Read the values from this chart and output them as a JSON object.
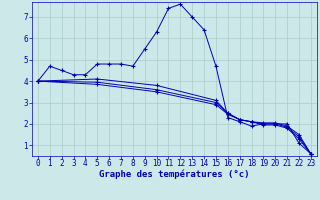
{
  "xlabel": "Graphe des températures (°c)",
  "background_color": "#cce8e8",
  "grid_color": "#aacccc",
  "line_color": "#0000bb",
  "xlim": [
    -0.5,
    23.5
  ],
  "ylim": [
    0.5,
    7.7
  ],
  "xticks": [
    0,
    1,
    2,
    3,
    4,
    5,
    6,
    7,
    8,
    9,
    10,
    11,
    12,
    13,
    14,
    15,
    16,
    17,
    18,
    19,
    20,
    21,
    22,
    23
  ],
  "yticks": [
    1,
    2,
    3,
    4,
    5,
    6,
    7
  ],
  "series": [
    {
      "x": [
        0,
        1,
        2,
        3,
        4,
        5,
        6,
        7,
        8,
        9,
        10,
        11,
        12,
        13,
        14,
        15,
        16,
        17,
        18,
        19,
        20,
        21,
        22,
        23
      ],
      "y": [
        4.0,
        4.7,
        4.5,
        4.3,
        4.3,
        4.8,
        4.8,
        4.8,
        4.7,
        5.5,
        6.3,
        7.4,
        7.6,
        7.0,
        6.4,
        4.7,
        2.3,
        2.1,
        1.9,
        2.0,
        2.0,
        2.0,
        1.1,
        0.6
      ]
    },
    {
      "x": [
        0,
        5,
        10,
        15,
        16,
        17,
        18,
        19,
        20,
        21,
        22,
        23
      ],
      "y": [
        4.0,
        4.1,
        3.8,
        3.1,
        2.5,
        2.2,
        2.1,
        2.05,
        2.05,
        1.9,
        1.5,
        0.6
      ]
    },
    {
      "x": [
        0,
        5,
        10,
        15,
        16,
        17,
        18,
        19,
        20,
        21,
        22,
        23
      ],
      "y": [
        4.0,
        3.95,
        3.6,
        3.0,
        2.5,
        2.2,
        2.1,
        2.0,
        2.0,
        1.85,
        1.4,
        0.6
      ]
    },
    {
      "x": [
        0,
        5,
        10,
        15,
        16,
        17,
        18,
        19,
        20,
        21,
        22,
        23
      ],
      "y": [
        4.0,
        3.85,
        3.5,
        2.9,
        2.45,
        2.2,
        2.1,
        1.95,
        1.95,
        1.8,
        1.3,
        0.6
      ]
    }
  ],
  "tick_fontsize": 5.5,
  "xlabel_fontsize": 6.5
}
